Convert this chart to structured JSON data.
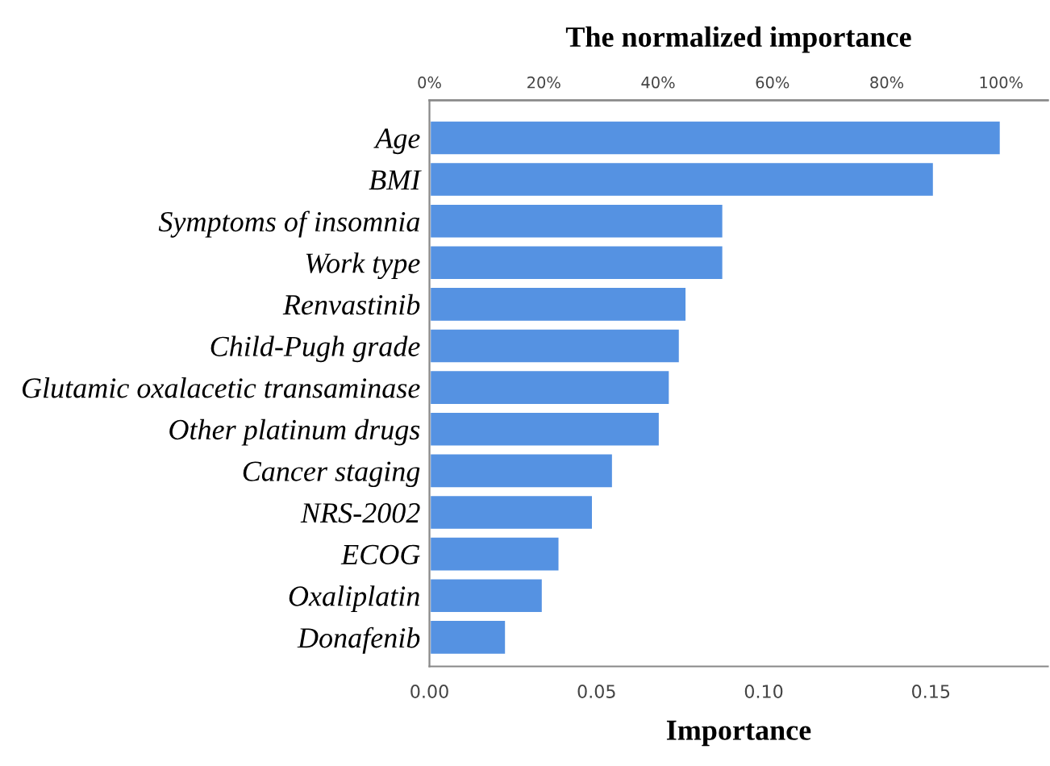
{
  "chart_data": {
    "type": "bar",
    "orientation": "horizontal",
    "title": "The normalized importance",
    "xlabel": "Importance",
    "categories": [
      "Age",
      "BMI",
      "Symptoms of insomnia",
      "Work type",
      "Renvastinib",
      "Child-Pugh grade",
      "Glutamic oxalacetic transaminase",
      "Other platinum drugs",
      "Cancer staging",
      "NRS-2002",
      "ECOG",
      "Oxaliplatin",
      "Donafenib"
    ],
    "series": [
      {
        "color": "#5592e2",
        "values": [
          0.171,
          0.151,
          0.088,
          0.088,
          0.077,
          0.075,
          0.072,
          0.069,
          0.055,
          0.049,
          0.039,
          0.034,
          0.023
        ]
      }
    ],
    "xlim": [
      0,
      0.185
    ],
    "xticks": [
      {
        "value": 0,
        "label": "0.00"
      },
      {
        "value": 0.05,
        "label": "0.05"
      },
      {
        "value": 0.1,
        "label": "0.10"
      },
      {
        "value": 0.15,
        "label": "0.15"
      }
    ],
    "x2lim": [
      0,
      108.2
    ],
    "x2ticks": [
      {
        "value": 0,
        "label": "0%"
      },
      {
        "value": 20,
        "label": "20%"
      },
      {
        "value": 40,
        "label": "40%"
      },
      {
        "value": 60,
        "label": "60%"
      },
      {
        "value": 80,
        "label": "80%"
      },
      {
        "value": 100,
        "label": "100%"
      }
    ],
    "grid": false,
    "legend": false
  }
}
